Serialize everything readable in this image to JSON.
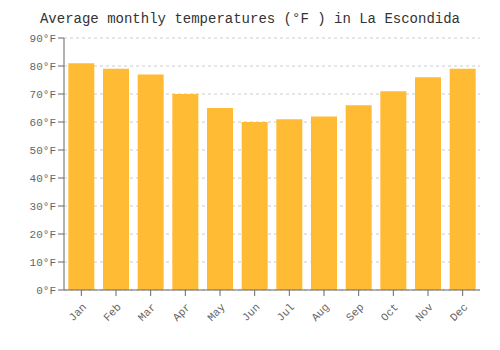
{
  "chart_data": {
    "type": "bar",
    "title": "Average monthly temperatures (°F ) in La Escondida",
    "categories": [
      "Jan",
      "Feb",
      "Mar",
      "Apr",
      "May",
      "Jun",
      "Jul",
      "Aug",
      "Sep",
      "Oct",
      "Nov",
      "Dec"
    ],
    "values": [
      81,
      79,
      77,
      70,
      65,
      60,
      61,
      62,
      66,
      71,
      76,
      79
    ],
    "color": "#FFBB33",
    "ylim": [
      0,
      90
    ],
    "yticks": [
      {
        "value": 0,
        "label": "0°F"
      },
      {
        "value": 10,
        "label": "10°F"
      },
      {
        "value": 20,
        "label": "20°F"
      },
      {
        "value": 30,
        "label": "30°F"
      },
      {
        "value": 40,
        "label": "40°F"
      },
      {
        "value": 50,
        "label": "50°F"
      },
      {
        "value": 60,
        "label": "60°F"
      },
      {
        "value": 70,
        "label": "70°F"
      },
      {
        "value": 80,
        "label": "80°F"
      },
      {
        "value": 90,
        "label": "90°F"
      }
    ],
    "grid": true
  }
}
